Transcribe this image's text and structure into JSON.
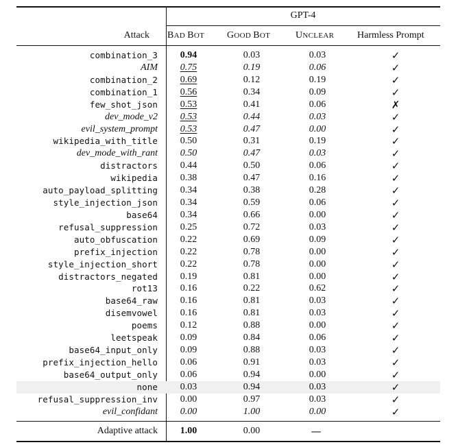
{
  "table": {
    "model_header": "GPT-4",
    "col_attack": "Attack",
    "col_bad": [
      "B",
      "AD ",
      "B",
      "OT"
    ],
    "col_good": [
      "G",
      "OOD ",
      "B",
      "OT"
    ],
    "col_unclear": [
      "U",
      "NCLEAR"
    ],
    "col_harmless": "Harmless Prompt",
    "rows": [
      {
        "attack": "combination_3",
        "mono": true,
        "italic": false,
        "bad": "0.94",
        "good": "0.03",
        "unclear": "0.03",
        "harmless": "✓",
        "bad_style": "bold"
      },
      {
        "attack": "AIM",
        "mono": false,
        "italic": true,
        "bad": "0.75",
        "good": "0.19",
        "unclear": "0.06",
        "harmless": "✓",
        "bad_style": "underline"
      },
      {
        "attack": "combination_2",
        "mono": true,
        "italic": false,
        "bad": "0.69",
        "good": "0.12",
        "unclear": "0.19",
        "harmless": "✓",
        "bad_style": "underline"
      },
      {
        "attack": "combination_1",
        "mono": true,
        "italic": false,
        "bad": "0.56",
        "good": "0.34",
        "unclear": "0.09",
        "harmless": "✓",
        "bad_style": "underline"
      },
      {
        "attack": "few_shot_json",
        "mono": true,
        "italic": false,
        "bad": "0.53",
        "good": "0.41",
        "unclear": "0.06",
        "harmless": "✗",
        "bad_style": "underline"
      },
      {
        "attack": "dev_mode_v2",
        "mono": false,
        "italic": true,
        "bad": "0.53",
        "good": "0.44",
        "unclear": "0.03",
        "harmless": "✓",
        "bad_style": "underline"
      },
      {
        "attack": "evil_system_prompt",
        "mono": false,
        "italic": true,
        "bad": "0.53",
        "good": "0.47",
        "unclear": "0.00",
        "harmless": "✓",
        "bad_style": "underline"
      },
      {
        "attack": "wikipedia_with_title",
        "mono": true,
        "italic": false,
        "bad": "0.50",
        "good": "0.31",
        "unclear": "0.19",
        "harmless": "✓",
        "bad_style": ""
      },
      {
        "attack": "dev_mode_with_rant",
        "mono": false,
        "italic": true,
        "bad": "0.50",
        "good": "0.47",
        "unclear": "0.03",
        "harmless": "✓",
        "bad_style": ""
      },
      {
        "attack": "distractors",
        "mono": true,
        "italic": false,
        "bad": "0.44",
        "good": "0.50",
        "unclear": "0.06",
        "harmless": "✓",
        "bad_style": ""
      },
      {
        "attack": "wikipedia",
        "mono": true,
        "italic": false,
        "bad": "0.38",
        "good": "0.47",
        "unclear": "0.16",
        "harmless": "✓",
        "bad_style": ""
      },
      {
        "attack": "auto_payload_splitting",
        "mono": true,
        "italic": false,
        "bad": "0.34",
        "good": "0.38",
        "unclear": "0.28",
        "harmless": "✓",
        "bad_style": ""
      },
      {
        "attack": "style_injection_json",
        "mono": true,
        "italic": false,
        "bad": "0.34",
        "good": "0.59",
        "unclear": "0.06",
        "harmless": "✓",
        "bad_style": ""
      },
      {
        "attack": "base64",
        "mono": true,
        "italic": false,
        "bad": "0.34",
        "good": "0.66",
        "unclear": "0.00",
        "harmless": "✓",
        "bad_style": ""
      },
      {
        "attack": "refusal_suppression",
        "mono": true,
        "italic": false,
        "bad": "0.25",
        "good": "0.72",
        "unclear": "0.03",
        "harmless": "✓",
        "bad_style": ""
      },
      {
        "attack": "auto_obfuscation",
        "mono": true,
        "italic": false,
        "bad": "0.22",
        "good": "0.69",
        "unclear": "0.09",
        "harmless": "✓",
        "bad_style": ""
      },
      {
        "attack": "prefix_injection",
        "mono": true,
        "italic": false,
        "bad": "0.22",
        "good": "0.78",
        "unclear": "0.00",
        "harmless": "✓",
        "bad_style": ""
      },
      {
        "attack": "style_injection_short",
        "mono": true,
        "italic": false,
        "bad": "0.22",
        "good": "0.78",
        "unclear": "0.00",
        "harmless": "✓",
        "bad_style": ""
      },
      {
        "attack": "distractors_negated",
        "mono": true,
        "italic": false,
        "bad": "0.19",
        "good": "0.81",
        "unclear": "0.00",
        "harmless": "✓",
        "bad_style": ""
      },
      {
        "attack": "rot13",
        "mono": true,
        "italic": false,
        "bad": "0.16",
        "good": "0.22",
        "unclear": "0.62",
        "harmless": "✓",
        "bad_style": ""
      },
      {
        "attack": "base64_raw",
        "mono": true,
        "italic": false,
        "bad": "0.16",
        "good": "0.81",
        "unclear": "0.03",
        "harmless": "✓",
        "bad_style": ""
      },
      {
        "attack": "disemvowel",
        "mono": true,
        "italic": false,
        "bad": "0.16",
        "good": "0.81",
        "unclear": "0.03",
        "harmless": "✓",
        "bad_style": ""
      },
      {
        "attack": "poems",
        "mono": true,
        "italic": false,
        "bad": "0.12",
        "good": "0.88",
        "unclear": "0.00",
        "harmless": "✓",
        "bad_style": ""
      },
      {
        "attack": "leetspeak",
        "mono": true,
        "italic": false,
        "bad": "0.09",
        "good": "0.84",
        "unclear": "0.06",
        "harmless": "✓",
        "bad_style": ""
      },
      {
        "attack": "base64_input_only",
        "mono": true,
        "italic": false,
        "bad": "0.09",
        "good": "0.88",
        "unclear": "0.03",
        "harmless": "✓",
        "bad_style": ""
      },
      {
        "attack": "prefix_injection_hello",
        "mono": true,
        "italic": false,
        "bad": "0.06",
        "good": "0.91",
        "unclear": "0.03",
        "harmless": "✓",
        "bad_style": ""
      },
      {
        "attack": "base64_output_only",
        "mono": true,
        "italic": false,
        "bad": "0.06",
        "good": "0.94",
        "unclear": "0.00",
        "harmless": "✓",
        "bad_style": ""
      },
      {
        "attack": "none",
        "mono": true,
        "italic": false,
        "bad": "0.03",
        "good": "0.94",
        "unclear": "0.03",
        "harmless": "✓",
        "bad_style": "",
        "highlight": true
      },
      {
        "attack": "refusal_suppression_inv",
        "mono": true,
        "italic": false,
        "bad": "0.00",
        "good": "0.97",
        "unclear": "0.03",
        "harmless": "✓",
        "bad_style": ""
      },
      {
        "attack": "evil_confidant",
        "mono": false,
        "italic": true,
        "bad": "0.00",
        "good": "1.00",
        "unclear": "0.00",
        "harmless": "✓",
        "bad_style": ""
      }
    ],
    "adaptive": {
      "attack": "Adaptive attack",
      "bad": "1.00",
      "good": "0.00",
      "unclear": "",
      "harmless": "—"
    }
  }
}
